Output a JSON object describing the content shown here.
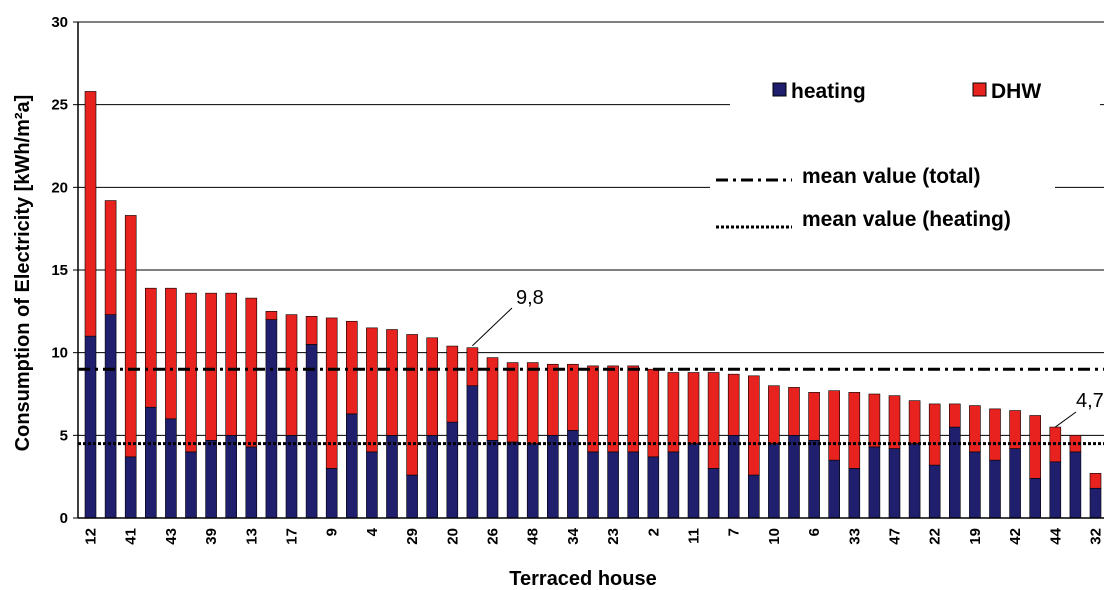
{
  "chart_data": {
    "type": "bar",
    "stacked": true,
    "title": "",
    "xlabel": "Terraced house",
    "ylabel": "Consumption of Electricity [kWh/m²a]",
    "ylim": [
      0,
      30
    ],
    "yticks": [
      0,
      5,
      10,
      15,
      20,
      25,
      30
    ],
    "grid": true,
    "legend_position": "top-right",
    "tick_labels": [
      "12",
      "41",
      "43",
      "39",
      "13",
      "17",
      "9",
      "4",
      "29",
      "20",
      "26",
      "48",
      "34",
      "23",
      "2",
      "11",
      "7",
      "10",
      "6",
      "33",
      "47",
      "22",
      "19",
      "42",
      "44",
      "32"
    ],
    "series": [
      {
        "name": "heating",
        "color": "#1f1f6e",
        "values": [
          11.0,
          12.3,
          3.7,
          6.7,
          6.0,
          4.0,
          4.7,
          5.0,
          4.3,
          12.0,
          5.0,
          10.5,
          3.0,
          6.3,
          4.0,
          5.0,
          2.6,
          5.0,
          5.8,
          8.0,
          4.7,
          4.6,
          4.5,
          5.0,
          5.3,
          4.0,
          4.0,
          4.0,
          3.7,
          4.0,
          4.5,
          3.0,
          5.0,
          2.6,
          4.5,
          5.0,
          4.7,
          3.5,
          3.0,
          4.3,
          4.2,
          4.5,
          3.2,
          5.5,
          4.0,
          3.5,
          4.2,
          2.4,
          3.4,
          4.0,
          1.8
        ]
      },
      {
        "name": "DHW",
        "color": "#e8231f",
        "values": [
          14.8,
          6.9,
          14.6,
          7.2,
          7.9,
          9.6,
          8.9,
          8.6,
          9.0,
          0.5,
          7.3,
          1.7,
          9.1,
          5.6,
          7.5,
          6.4,
          8.5,
          5.9,
          4.6,
          2.3,
          5.0,
          4.8,
          4.9,
          4.3,
          4.0,
          5.2,
          5.2,
          5.2,
          5.3,
          4.8,
          4.3,
          5.8,
          3.7,
          6.0,
          3.5,
          2.9,
          2.9,
          4.2,
          4.6,
          3.2,
          3.2,
          2.6,
          3.7,
          1.4,
          2.8,
          3.1,
          2.3,
          3.8,
          2.1,
          1.0,
          0.9
        ]
      }
    ],
    "reference_lines": [
      {
        "name": "mean value (total)",
        "value": 9.0,
        "style": "dash-dot"
      },
      {
        "name": "mean value (heating)",
        "value": 4.5,
        "style": "dotted"
      }
    ],
    "annotations": [
      {
        "text": "9,8",
        "bar_index": 19
      },
      {
        "text": "4,7",
        "bar_index": 48
      }
    ]
  }
}
